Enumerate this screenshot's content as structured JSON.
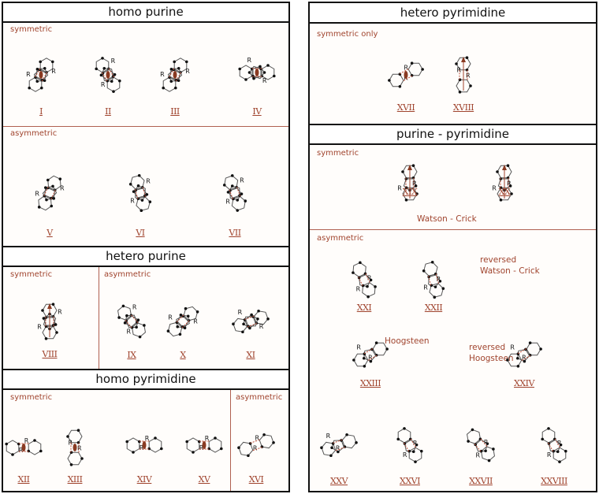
{
  "panels": {
    "homo_purine": {
      "title": "homo purine",
      "symmetric": "symmetric",
      "asymmetric": "asymmetric"
    },
    "hetero_purine": {
      "title": "hetero purine",
      "symmetric": "symmetric",
      "asymmetric": "asymmetric"
    },
    "homo_pyrimidine": {
      "title": "homo pyrimidine",
      "symmetric": "symmetric",
      "asymmetric": "asymmetric"
    },
    "hetero_pyrimidine": {
      "title": "hetero pyrimidine",
      "symmetric_only": "symmetric only"
    },
    "purine_pyrimidine": {
      "title": "purine - pyrimidine",
      "symmetric": "symmetric",
      "asymmetric": "asymmetric",
      "watson_crick": "Watson - Crick",
      "reversed_wc_1": "reversed",
      "reversed_wc_2": "Watson - Crick",
      "hoogsteen": "Hoogsteen",
      "reversed_h_1": "reversed",
      "reversed_h_2": "Hoogsteen"
    }
  },
  "colors": {
    "accent": "#a0442e",
    "border": "#111111",
    "hbond": "#c0503a"
  },
  "substituent_label": "R",
  "pairs": [
    {
      "label": "I",
      "pair_type": "purine-purine",
      "symmetry": "twofold-axis"
    },
    {
      "label": "II",
      "pair_type": "purine-purine",
      "symmetry": "twofold-axis"
    },
    {
      "label": "III",
      "pair_type": "purine-purine",
      "symmetry": "twofold-axis"
    },
    {
      "label": "IV",
      "pair_type": "purine-purine",
      "symmetry": "twofold-axis"
    },
    {
      "label": "V",
      "pair_type": "purine-purine"
    },
    {
      "label": "VI",
      "pair_type": "purine-purine"
    },
    {
      "label": "VII",
      "pair_type": "purine-purine"
    },
    {
      "label": "VIII",
      "pair_type": "purine-purine",
      "symmetry": "pseudo-dyad-arrow"
    },
    {
      "label": "IX",
      "pair_type": "purine-purine"
    },
    {
      "label": "X",
      "pair_type": "purine-purine"
    },
    {
      "label": "XI",
      "pair_type": "purine-purine"
    },
    {
      "label": "XII",
      "pair_type": "pyrimidine-pyrimidine",
      "symmetry": "twofold-axis"
    },
    {
      "label": "XIII",
      "pair_type": "pyrimidine-pyrimidine",
      "symmetry": "twofold-axis"
    },
    {
      "label": "XIV",
      "pair_type": "pyrimidine-pyrimidine",
      "symmetry": "twofold-axis"
    },
    {
      "label": "XV",
      "pair_type": "pyrimidine-pyrimidine",
      "symmetry": "twofold-axis"
    },
    {
      "label": "XVI",
      "pair_type": "pyrimidine-pyrimidine"
    },
    {
      "label": "XVII",
      "pair_type": "pyrimidine-pyrimidine",
      "symmetry": "twofold-axis"
    },
    {
      "label": "XVIII",
      "pair_type": "pyrimidine-pyrimidine",
      "symmetry": "pseudo-dyad-arrow"
    },
    {
      "label": "XIX",
      "pair_type": "purine-pyrimidine",
      "symmetry": "pseudo-dyad-arrow"
    },
    {
      "label": "XX",
      "pair_type": "purine-pyrimidine",
      "symmetry": "pseudo-dyad-arrow"
    },
    {
      "label": "XXI",
      "pair_type": "purine-pyrimidine"
    },
    {
      "label": "XXII",
      "pair_type": "purine-pyrimidine"
    },
    {
      "label": "XXIII",
      "pair_type": "purine-pyrimidine"
    },
    {
      "label": "XXIV",
      "pair_type": "purine-pyrimidine"
    },
    {
      "label": "XXV",
      "pair_type": "purine-pyrimidine"
    },
    {
      "label": "XXVI",
      "pair_type": "purine-pyrimidine"
    },
    {
      "label": "XXVII",
      "pair_type": "purine-pyrimidine"
    },
    {
      "label": "XXVIII",
      "pair_type": "purine-pyrimidine"
    }
  ]
}
